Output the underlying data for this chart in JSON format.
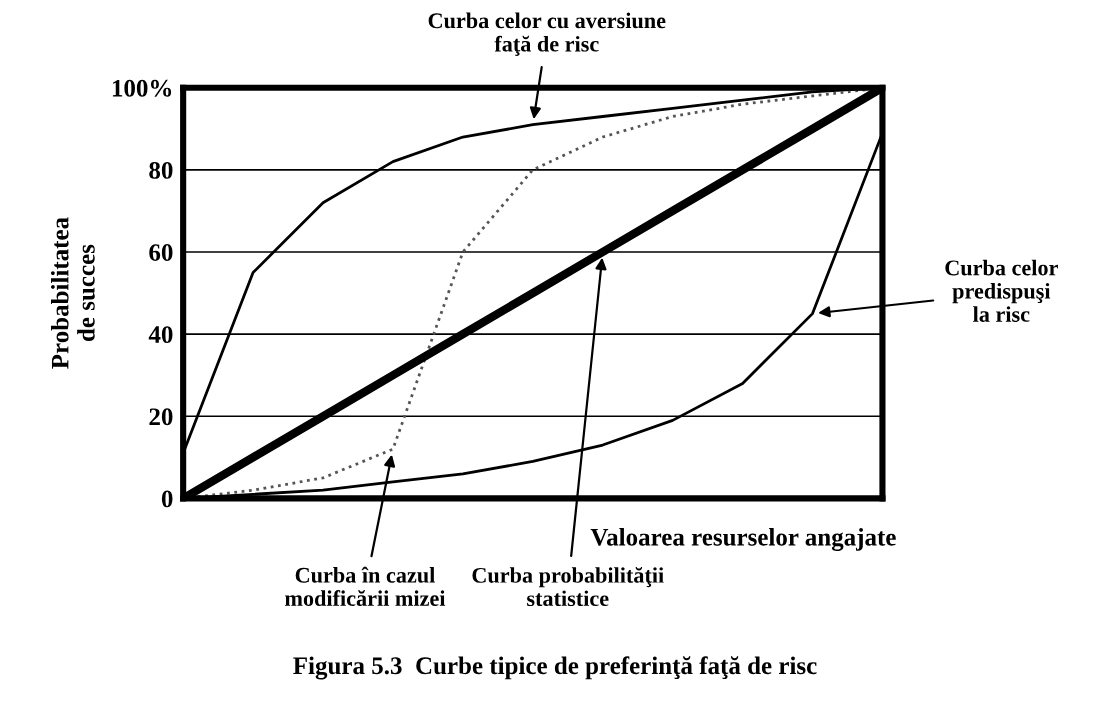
{
  "chart_data": {
    "type": "line",
    "title": "Figura 5.3  Curbe tipice de preferinţă faţă de risc",
    "xlabel": "Valoarea resurselor angajate",
    "ylabel": "Probabilitatea\nde succes",
    "categories": [
      null,
      null,
      null,
      null,
      null,
      null,
      null,
      null,
      null,
      null,
      null
    ],
    "series": [
      {
        "name": "Curba celor cu aversiune\nfaţă de risc",
        "color": "#000000",
        "values": [
          11,
          55,
          72,
          82,
          88,
          91,
          93,
          95,
          97,
          99,
          100
        ]
      },
      {
        "name": "Curba în cazul\nmodificării mizei",
        "color": "#555555",
        "line_style": "dotted",
        "values": [
          0,
          2,
          5,
          12,
          60,
          80,
          88,
          93,
          96,
          98,
          100
        ]
      },
      {
        "name": "Curba probabilităţii\nstatistice",
        "color": "#000000",
        "values": [
          0,
          10,
          20,
          30,
          40,
          50,
          60,
          70,
          80,
          90,
          100
        ]
      },
      {
        "name": "Curba celor\npredispuşi\nla risc",
        "color": "#000000",
        "values": [
          0,
          1,
          2,
          4,
          6,
          9,
          13,
          19,
          28,
          45,
          89
        ]
      }
    ],
    "ylim": [
      0,
      100
    ],
    "yticks": [
      0,
      20,
      40,
      60,
      80,
      {
        "value": 100,
        "label": "100%"
      }
    ],
    "tick_labels": "y",
    "grid": "y",
    "line_style": "solid",
    "marker": "none"
  }
}
